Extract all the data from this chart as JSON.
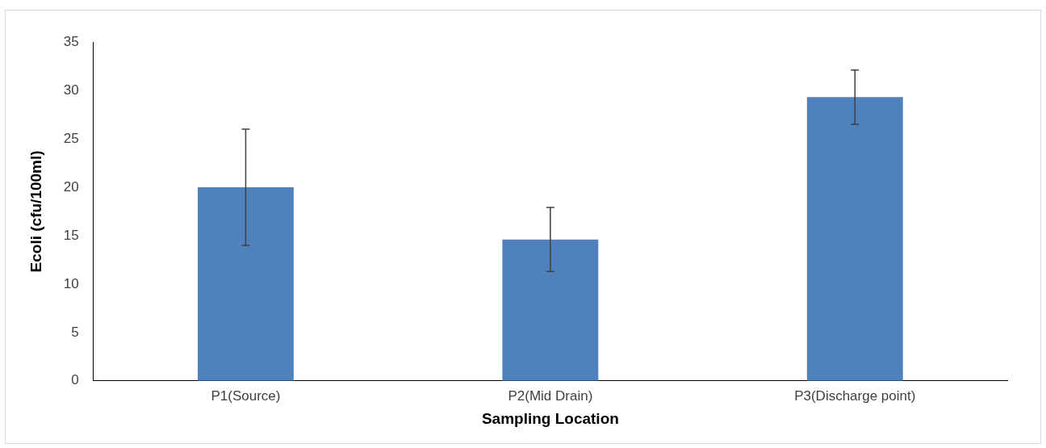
{
  "chart_data": {
    "type": "bar",
    "xlabel": "Sampling Location",
    "ylabel": "Ecoli (cfu/100ml)",
    "categories": [
      "P1(Source)",
      "P2(Mid Drain)",
      "P3(Discharge point)"
    ],
    "values": [
      20,
      14.6,
      29.3
    ],
    "errors": [
      6,
      3.3,
      2.8
    ],
    "color": "#4f81bd",
    "ylim": [
      0,
      35
    ],
    "yticks": [
      0,
      5,
      10,
      15,
      20,
      25,
      30,
      35
    ],
    "grid": false,
    "legend": false
  }
}
